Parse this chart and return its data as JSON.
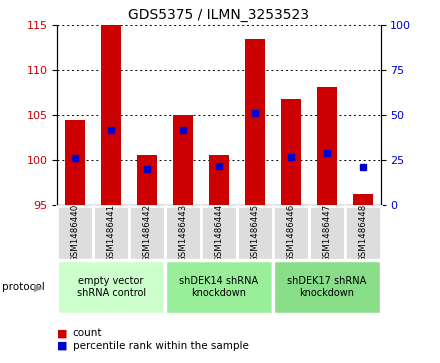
{
  "title": "GDS5375 / ILMN_3253523",
  "samples": [
    "GSM1486440",
    "GSM1486441",
    "GSM1486442",
    "GSM1486443",
    "GSM1486444",
    "GSM1486445",
    "GSM1486446",
    "GSM1486447",
    "GSM1486448"
  ],
  "counts": [
    104.5,
    115.0,
    100.6,
    105.0,
    100.6,
    113.5,
    106.8,
    108.2,
    96.2
  ],
  "count_min": 95.0,
  "percentile_ranks": [
    26,
    42,
    20,
    42,
    22,
    51,
    27,
    29,
    21
  ],
  "ylim_left": [
    95,
    115
  ],
  "ylim_right": [
    0,
    100
  ],
  "yticks_left": [
    95,
    100,
    105,
    110,
    115
  ],
  "yticks_right": [
    0,
    25,
    50,
    75,
    100
  ],
  "bar_color": "#cc0000",
  "dot_color": "#0000cc",
  "groups": [
    {
      "label": "empty vector\nshRNA control",
      "start": 0,
      "end": 3,
      "color": "#ccffcc"
    },
    {
      "label": "shDEK14 shRNA\nknockdown",
      "start": 3,
      "end": 6,
      "color": "#99ee99"
    },
    {
      "label": "shDEK17 shRNA\nknockdown",
      "start": 6,
      "end": 9,
      "color": "#88dd88"
    }
  ],
  "bar_color_legend": "#cc0000",
  "dot_color_legend": "#0000cc",
  "bar_width": 0.55,
  "tick_color_left": "#cc0000",
  "tick_color_right": "#0000cc",
  "label_color_left": "#cc0000",
  "label_color_right": "#0000cc"
}
